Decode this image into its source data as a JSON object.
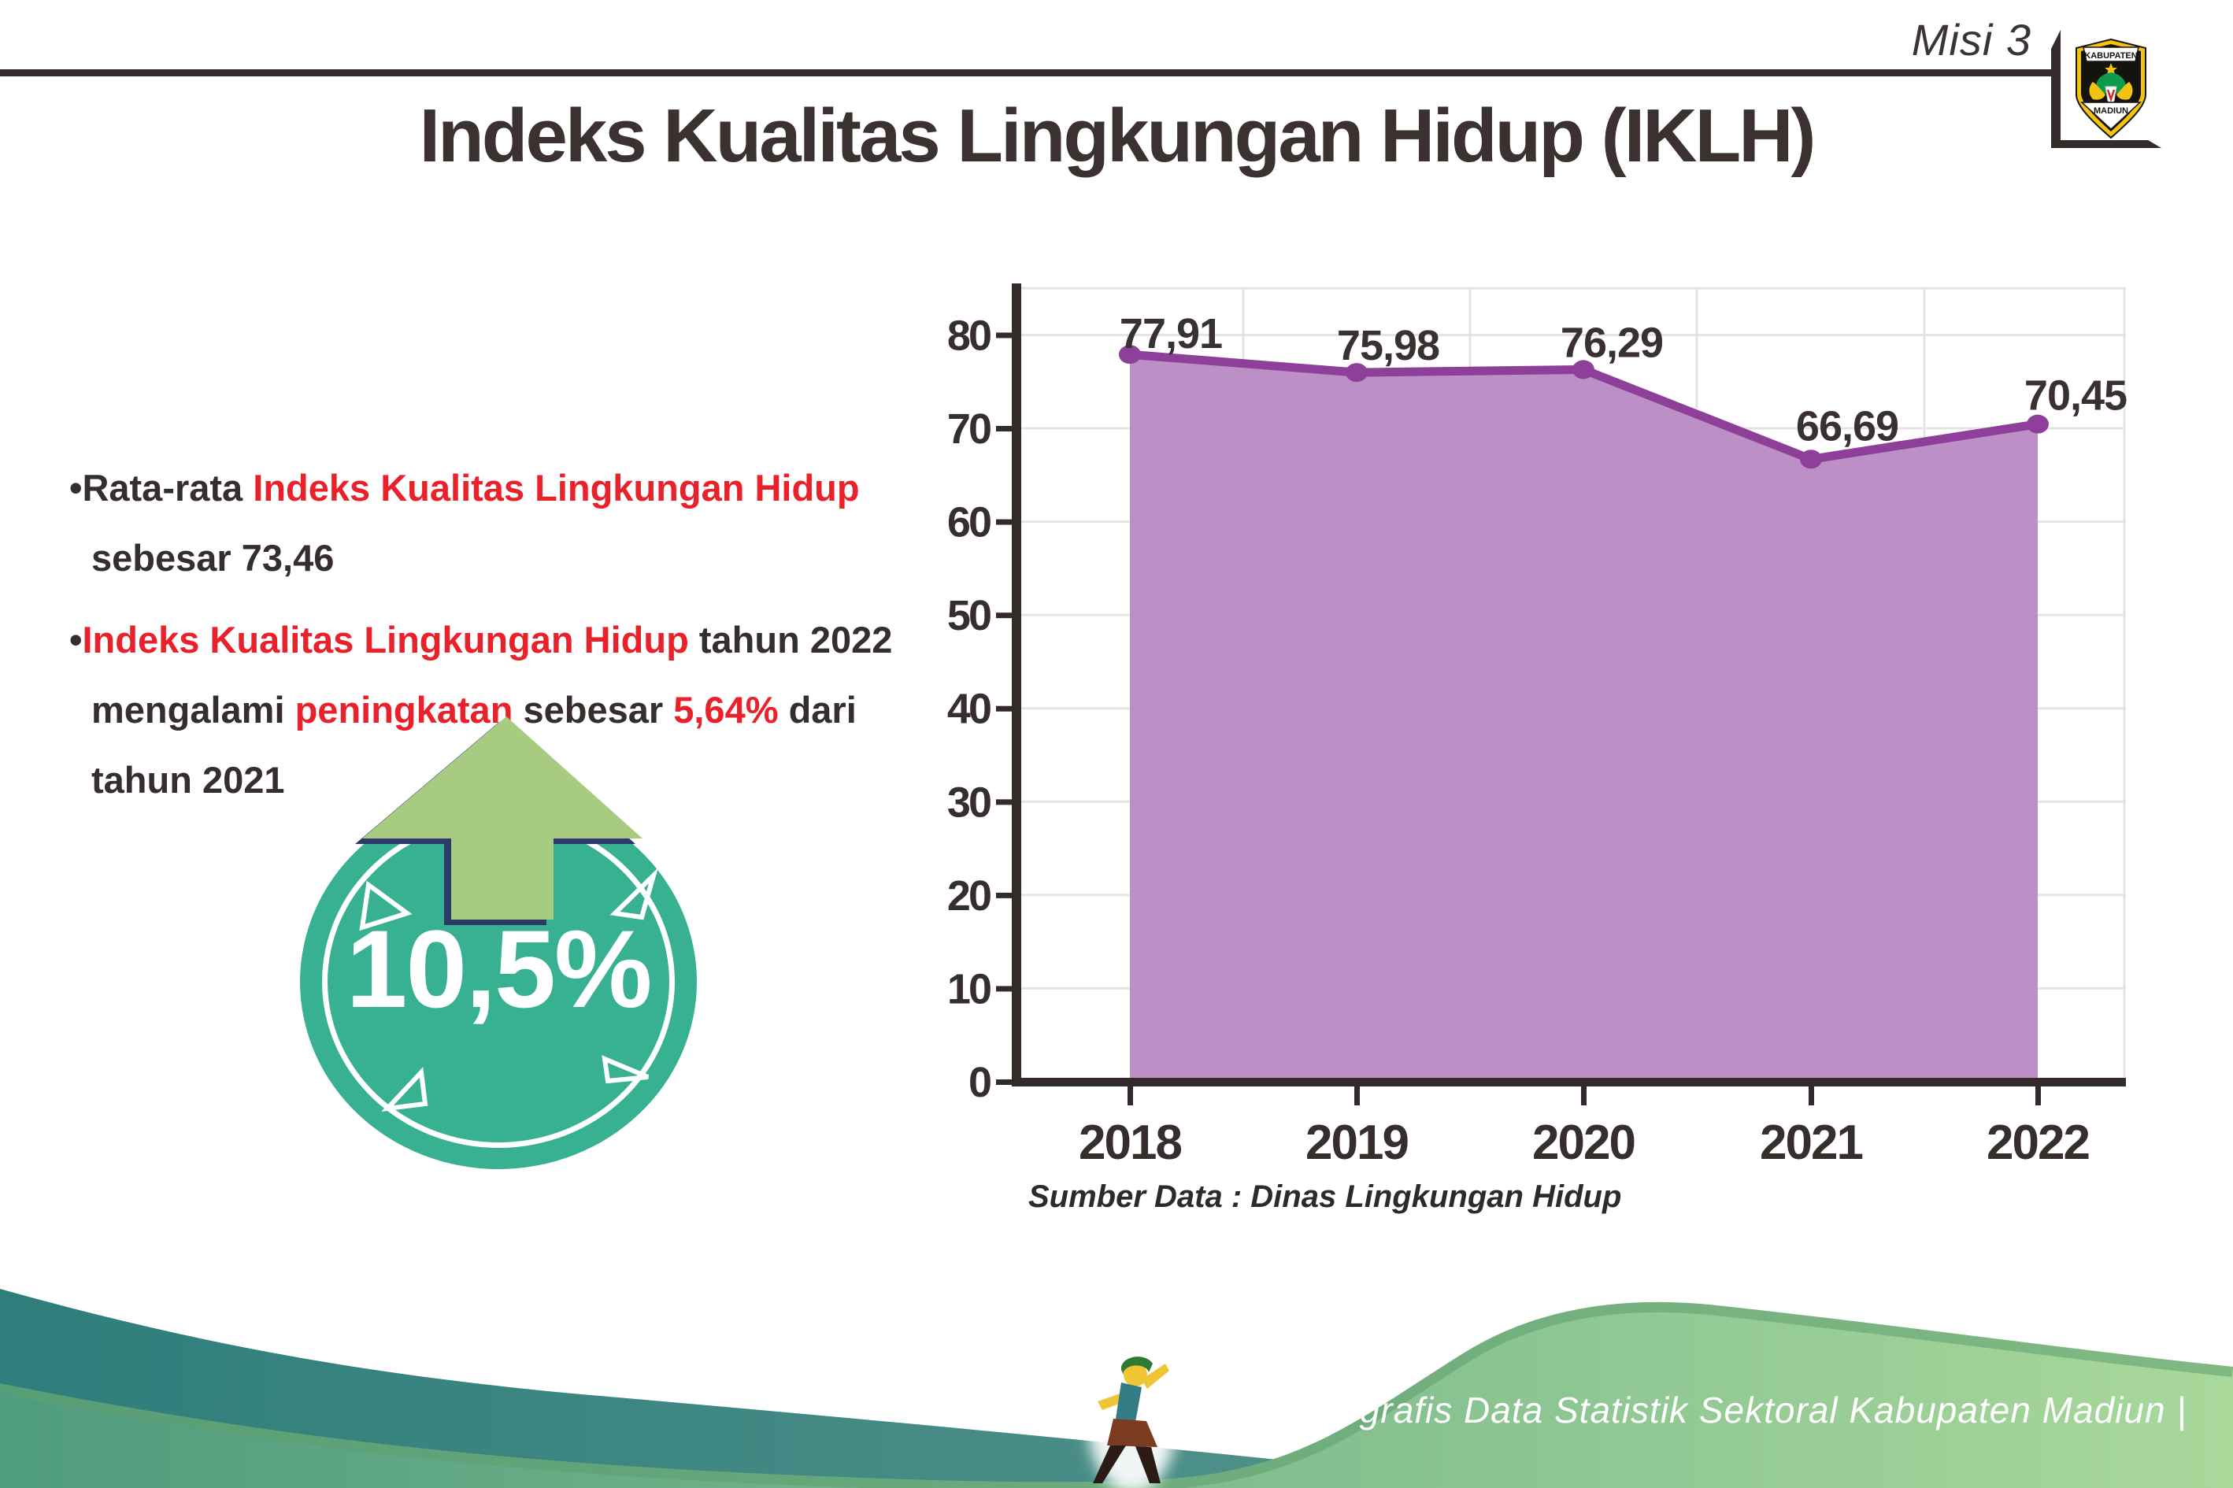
{
  "header": {
    "misi_label": "Misi 3",
    "logo_top": "KABUPATEN",
    "logo_bottom": "MADIUN"
  },
  "title": "Indeks Kualitas Lingkungan Hidup (IKLH)",
  "insights": {
    "bullets": [
      {
        "segments": [
          {
            "t": "•Rata-rata ",
            "c": "dark"
          },
          {
            "t": "Indeks Kualitas Lingkungan Hidup",
            "c": "red",
            "br": true
          },
          {
            "t": "sebesar 73,46",
            "c": "dark"
          }
        ]
      },
      {
        "segments": [
          {
            "t": "•",
            "c": "dark"
          },
          {
            "t": "Indeks Kualitas Lingkungan Hidup",
            "c": "red"
          },
          {
            "t": " tahun 2022",
            "c": "dark",
            "br": true
          },
          {
            "t": "mengalami ",
            "c": "dark"
          },
          {
            "t": "peningkatan",
            "c": "red"
          },
          {
            "t": " sebesar ",
            "c": "dark"
          },
          {
            "t": "5,64%",
            "c": "red"
          },
          {
            "t": " dari",
            "c": "dark",
            "br": true
          },
          {
            "t": "tahun 2021",
            "c": "dark"
          }
        ]
      }
    ]
  },
  "badge": {
    "value_label": "10,5%",
    "direction_icon": "up-arrow"
  },
  "chart_data": {
    "type": "area",
    "title": "",
    "xlabel": "",
    "ylabel": "",
    "categories": [
      "2018",
      "2019",
      "2020",
      "2021",
      "2022"
    ],
    "values": [
      77.91,
      75.98,
      76.29,
      66.69,
      70.45
    ],
    "value_labels": [
      "77,91",
      "75,98",
      "76,29",
      "66,69",
      "70,45"
    ],
    "yticks": [
      0,
      10,
      20,
      30,
      40,
      50,
      60,
      70,
      80
    ],
    "ylim": [
      0,
      85
    ],
    "grid": true,
    "legend_position": "none",
    "source": "Sumber Data : Dinas Lingkungan Hidup"
  },
  "footer": {
    "caption": "Media Infografis Data Statistik Sektoral Kabupaten Madiun |"
  },
  "colors": {
    "text_dark": "#362E2C",
    "accent_red": "#E8212B",
    "badge_teal": "#37B192",
    "arrow_green": "#A6CB81",
    "arrow_outline_navy": "#2B3A68",
    "area_fill": "#BA8BC4",
    "line_purple": "#8E3F9A",
    "gridline": "#E4E4E4",
    "axis_dark": "#332B29",
    "wave_teal_start": "#2E7E7B",
    "wave_teal_end": "#57948D",
    "wave_green_start": "#4F9C7E",
    "wave_green_end": "#A9D89B",
    "wave_edge_green": "#5F9F70"
  }
}
